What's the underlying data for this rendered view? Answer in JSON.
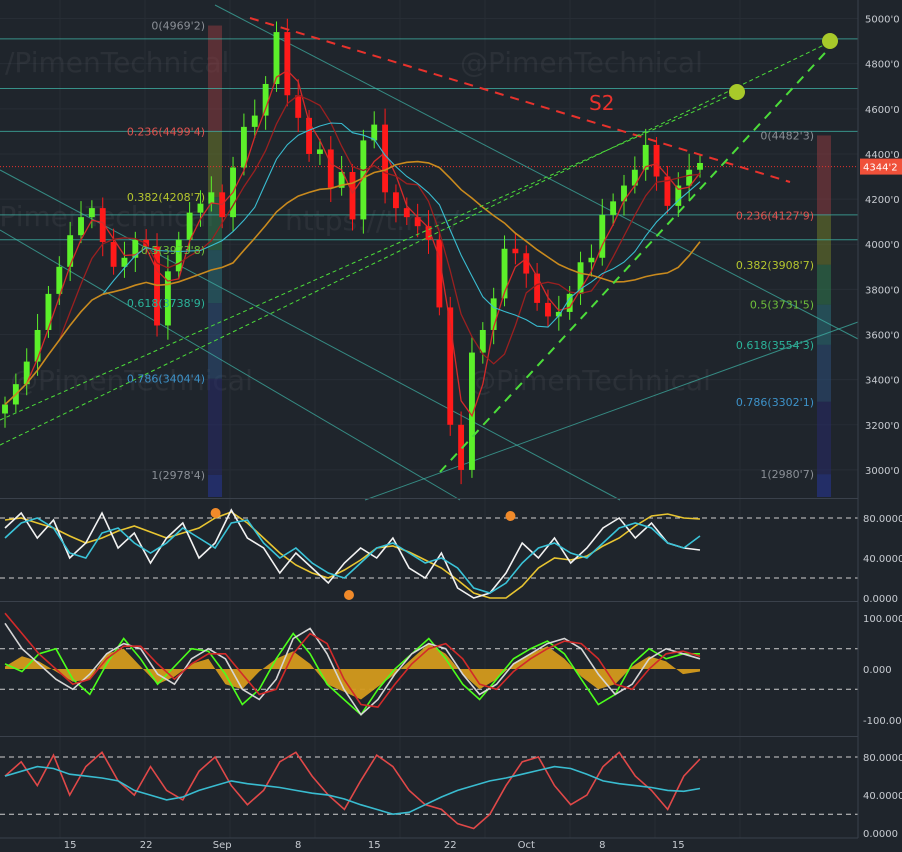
{
  "chart_data": [
    {
      "type": "candlestick",
      "panel": "price",
      "annotation_s2": "S2",
      "watermarks": [
        "/PimenTechnical",
        "@PimenTechnical",
        "https://t.me/",
        "@PimenTechnical",
        "@PimenTechnical",
        "/PimenTechnical"
      ],
      "last_price_label": "4344'2",
      "last_price": 4344,
      "price_axis_ticks": [
        "5000'0",
        "4800'0",
        "4600'0",
        "4400'0",
        "4200'0",
        "4000'0",
        "3800'0",
        "3600'0",
        "3400'0",
        "3200'0",
        "3000'0"
      ],
      "price_axis_values": [
        5000,
        4800,
        4600,
        4400,
        4200,
        4000,
        3800,
        3600,
        3400,
        3200,
        3000
      ],
      "ylim": [
        2880,
        5060
      ],
      "x_ticks": [
        "15",
        "22",
        "Sep",
        "8",
        "15",
        "22",
        "Oct",
        "8",
        "15"
      ],
      "x_tick_index": [
        6,
        13,
        20,
        27,
        34,
        41,
        48,
        55,
        62
      ],
      "fib_left": [
        {
          "label": "0(4969'2)",
          "value": 4969,
          "color": "#8a8f96"
        },
        {
          "label": "0.236(4499'4)",
          "value": 4499,
          "color": "#e0534f"
        },
        {
          "label": "0.382(4208'7)",
          "value": 4209,
          "color": "#b5c62e"
        },
        {
          "label": "0.5(3973'8)",
          "value": 3974,
          "color": "#6fbf3a"
        },
        {
          "label": "0.618(3738'9)",
          "value": 3739,
          "color": "#2bb39a"
        },
        {
          "label": "0.786(3404'4)",
          "value": 3404,
          "color": "#3d92c9"
        },
        {
          "label": "1(2978'4)",
          "value": 2978,
          "color": "#8a8f96"
        }
      ],
      "fib_right": [
        {
          "label": "0(4482'3)",
          "value": 4482,
          "color": "#8a8f96"
        },
        {
          "label": "0.236(4127'9)",
          "value": 4128,
          "color": "#e0534f"
        },
        {
          "label": "0.382(3908'7)",
          "value": 3909,
          "color": "#b5c62e"
        },
        {
          "label": "0.5(3731'5)",
          "value": 3732,
          "color": "#6fbf3a"
        },
        {
          "label": "0.618(3554'3)",
          "value": 3554,
          "color": "#2bb39a"
        },
        {
          "label": "0.786(3302'1)",
          "value": 3302,
          "color": "#3d92c9"
        },
        {
          "label": "1(2980'7)",
          "value": 2981,
          "color": "#8a8f96"
        }
      ],
      "horizontal_levels": [
        4910,
        4690,
        4500,
        4130,
        4020
      ],
      "closes": [
        3290,
        3380,
        3480,
        3620,
        3780,
        3900,
        4040,
        4120,
        4160,
        4010,
        3900,
        3940,
        4020,
        3990,
        3640,
        3880,
        4020,
        4140,
        4180,
        4230,
        4120,
        4340,
        4520,
        4570,
        4710,
        4940,
        4660,
        4560,
        4400,
        4420,
        4250,
        4320,
        4110,
        4460,
        4530,
        4230,
        4160,
        4120,
        4080,
        4020,
        3720,
        3200,
        3000,
        3520,
        3620,
        3760,
        3980,
        3960,
        3870,
        3740,
        3680,
        3700,
        3780,
        3920,
        3940,
        4130,
        4190,
        4260,
        4330,
        4440,
        4300,
        4170,
        4260,
        4330,
        4360
      ],
      "colors": {
        "up": "#5cf02a",
        "down": "#ff1a1a",
        "bg": "#1f252c",
        "grid": "#2a3038",
        "accent": "#f0513a"
      }
    },
    {
      "type": "line",
      "panel": "stochastic_rsi",
      "axis_ticks": [
        "80.0000",
        "40.0000",
        "0.0000"
      ],
      "axis_values": [
        80,
        40,
        0
      ],
      "ylim": [
        -2,
        98
      ],
      "dashed_levels": [
        80,
        20
      ],
      "series": [
        {
          "color": "#e8c531",
          "values": [
            78,
            80,
            75,
            70,
            62,
            55,
            60,
            67,
            72,
            66,
            60,
            65,
            70,
            80,
            86,
            75,
            60,
            45,
            33,
            25,
            20,
            28,
            38,
            50,
            52,
            46,
            38,
            30,
            18,
            5,
            0,
            0,
            12,
            30,
            40,
            38,
            42,
            52,
            60,
            72,
            82,
            84,
            80,
            79
          ]
        },
        {
          "color": "#f2f2f2",
          "values": [
            70,
            85,
            60,
            78,
            40,
            55,
            85,
            50,
            65,
            35,
            60,
            75,
            40,
            55,
            88,
            60,
            50,
            25,
            45,
            30,
            15,
            35,
            50,
            40,
            60,
            30,
            20,
            45,
            10,
            0,
            5,
            25,
            55,
            40,
            60,
            35,
            50,
            70,
            80,
            60,
            75,
            55,
            50,
            48
          ]
        },
        {
          "color": "#3ac3d8",
          "values": [
            60,
            75,
            80,
            70,
            45,
            40,
            65,
            70,
            55,
            45,
            55,
            70,
            60,
            50,
            75,
            78,
            55,
            40,
            50,
            35,
            25,
            20,
            35,
            50,
            55,
            45,
            35,
            40,
            30,
            10,
            5,
            15,
            35,
            50,
            55,
            45,
            40,
            55,
            70,
            75,
            70,
            55,
            50,
            62
          ]
        }
      ],
      "markers": [
        {
          "x": 0.3,
          "value": 85
        },
        {
          "x": 0.49,
          "value": 3
        },
        {
          "x": 0.72,
          "value": 82
        }
      ]
    },
    {
      "type": "area",
      "panel": "momentum",
      "axis_ticks": [
        "100.000",
        "0.000",
        "-100.000"
      ],
      "axis_values": [
        100,
        0,
        -100
      ],
      "ylim": [
        -130,
        130
      ],
      "dashed_levels": [
        40,
        -40
      ],
      "histogram": [
        5,
        25,
        15,
        -5,
        -25,
        -20,
        30,
        40,
        5,
        -30,
        -15,
        10,
        20,
        -30,
        -40,
        -5,
        20,
        35,
        10,
        -30,
        -45,
        -60,
        -35,
        -10,
        20,
        50,
        30,
        -10,
        -40,
        -20,
        10,
        30,
        45,
        20,
        -15,
        -40,
        -30,
        5,
        25,
        15,
        -10,
        -5
      ],
      "series": [
        {
          "color": "#4cff1c",
          "values": [
            10,
            -5,
            30,
            40,
            -20,
            -50,
            10,
            60,
            20,
            -30,
            5,
            40,
            35,
            -10,
            -70,
            -40,
            20,
            70,
            30,
            -30,
            -60,
            -90,
            -40,
            0,
            30,
            60,
            20,
            -30,
            -60,
            -20,
            20,
            40,
            55,
            30,
            -20,
            -70,
            -50,
            10,
            40,
            20,
            30,
            30
          ]
        },
        {
          "color": "#d6d6d6",
          "values": [
            90,
            40,
            10,
            -20,
            -40,
            -10,
            30,
            50,
            40,
            -10,
            -30,
            20,
            40,
            20,
            -40,
            -60,
            -20,
            60,
            80,
            30,
            -40,
            -90,
            -60,
            -10,
            30,
            50,
            40,
            -10,
            -50,
            -30,
            10,
            30,
            50,
            60,
            40,
            -10,
            -50,
            -30,
            20,
            40,
            30,
            20
          ]
        },
        {
          "color": "#d22a2a",
          "values": [
            110,
            70,
            30,
            0,
            -30,
            -20,
            20,
            45,
            45,
            10,
            -20,
            10,
            30,
            30,
            -10,
            -50,
            -40,
            30,
            70,
            50,
            -20,
            -70,
            -75,
            -30,
            10,
            40,
            50,
            20,
            -30,
            -40,
            -5,
            20,
            40,
            55,
            50,
            20,
            -30,
            -40,
            0,
            30,
            35,
            25
          ]
        }
      ]
    },
    {
      "type": "line",
      "panel": "rsi",
      "axis_ticks": [
        "80.0000",
        "40.0000",
        "0.0000"
      ],
      "axis_values": [
        80,
        40,
        0
      ],
      "ylim": [
        -5,
        100
      ],
      "dashed_levels": [
        80,
        20
      ],
      "series": [
        {
          "color": "#e04848",
          "values": [
            60,
            75,
            50,
            82,
            40,
            70,
            85,
            55,
            40,
            70,
            45,
            35,
            65,
            80,
            50,
            30,
            45,
            75,
            85,
            60,
            40,
            25,
            55,
            82,
            70,
            45,
            30,
            25,
            10,
            5,
            20,
            50,
            75,
            80,
            50,
            30,
            40,
            70,
            85,
            60,
            45,
            25,
            60,
            78
          ]
        },
        {
          "color": "#39bcd0",
          "values": [
            60,
            65,
            70,
            68,
            62,
            60,
            58,
            55,
            45,
            40,
            35,
            38,
            45,
            50,
            55,
            52,
            50,
            48,
            45,
            42,
            40,
            36,
            30,
            25,
            20,
            22,
            30,
            38,
            45,
            50,
            55,
            58,
            62,
            66,
            70,
            68,
            62,
            55,
            52,
            50,
            48,
            45,
            44,
            47
          ]
        }
      ]
    }
  ]
}
